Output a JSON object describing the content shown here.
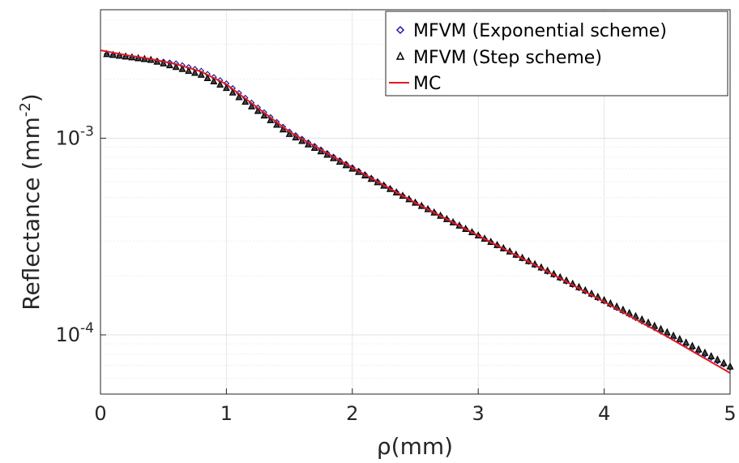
{
  "chart_data": {
    "type": "line",
    "xlabel": "ρ(mm)",
    "ylabel": "Reflectance (mm^-2)",
    "xlim": [
      0,
      5
    ],
    "ylim": [
      5e-05,
      0.0045
    ],
    "yscale": "log",
    "grid": true,
    "legend_position": "top-right",
    "x_ticks": [
      "0",
      "1",
      "2",
      "3",
      "4",
      "5"
    ],
    "y_ticks": [
      {
        "value": 0.001,
        "base": "10",
        "exp": "-3"
      },
      {
        "value": 0.0001,
        "base": "10",
        "exp": "-4"
      }
    ],
    "x": [
      0.0,
      0.2,
      0.4,
      0.6,
      0.8,
      1.0,
      1.5,
      2.0,
      2.5,
      3.0,
      3.5,
      4.0,
      4.5,
      5.0
    ],
    "series": [
      {
        "name": "MFVM (Exponential scheme)",
        "marker": "diamond",
        "color": "#1a1aa6",
        "values": [
          0.0027,
          0.0026,
          0.0025,
          0.0024,
          0.0022,
          0.0019,
          0.00108,
          0.00071,
          0.00047,
          0.00032,
          0.000218,
          0.000148,
          0.0001,
          6.8e-05
        ]
      },
      {
        "name": "MFVM (Step scheme)",
        "marker": "triangle",
        "color": "#000000",
        "values": [
          0.0027,
          0.0026,
          0.0025,
          0.0023,
          0.0021,
          0.0018,
          0.00105,
          0.0007,
          0.00047,
          0.00032,
          0.00022,
          0.00015,
          0.000103,
          6.9e-05
        ]
      },
      {
        "name": "MC",
        "marker": "line",
        "color": "#e31a1c",
        "values": [
          0.0028,
          0.00265,
          0.00253,
          0.00238,
          0.00218,
          0.00188,
          0.00108,
          0.00071,
          0.00047,
          0.00032,
          0.000218,
          0.000147,
          9.8e-05,
          6.4e-05
        ]
      }
    ]
  }
}
